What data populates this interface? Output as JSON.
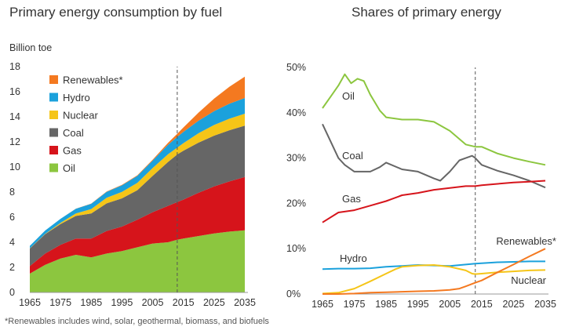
{
  "footnote": "*Renewables includes wind, solar, geothermal, biomass, and biofuels",
  "colors": {
    "oil": "#8cc63f",
    "gas": "#d6141b",
    "coal": "#666666",
    "nuclear": "#f5c518",
    "hydro": "#1ba1dc",
    "renewables": "#f47920"
  },
  "chart_data": [
    {
      "type": "area",
      "stacked": true,
      "title": "Primary energy consumption by fuel",
      "ylabel": "Billion toe",
      "xlabel": "",
      "xlim": [
        1965,
        2035
      ],
      "ylim": [
        0,
        18
      ],
      "x_ticks": [
        "1965",
        "1975",
        "1985",
        "1995",
        "2005",
        "2015",
        "2025",
        "2035"
      ],
      "y_ticks": [
        "0",
        "2",
        "4",
        "6",
        "8",
        "10",
        "12",
        "14",
        "16",
        "18"
      ],
      "projection_start": 2013,
      "legend_position": "top-left",
      "x": [
        1965,
        1970,
        1975,
        1980,
        1985,
        1990,
        1995,
        2000,
        2005,
        2010,
        2013,
        2015,
        2020,
        2025,
        2030,
        2035
      ],
      "series": [
        {
          "name": "Oil",
          "key": "oil",
          "values": [
            1.5,
            2.2,
            2.7,
            3.0,
            2.8,
            3.1,
            3.3,
            3.6,
            3.9,
            4.0,
            4.2,
            4.3,
            4.5,
            4.7,
            4.85,
            4.95
          ]
        },
        {
          "name": "Gas",
          "key": "gas",
          "values": [
            0.6,
            0.9,
            1.1,
            1.3,
            1.5,
            1.8,
            1.95,
            2.2,
            2.5,
            2.9,
            3.0,
            3.1,
            3.45,
            3.75,
            4.0,
            4.25
          ]
        },
        {
          "name": "Coal",
          "key": "coal",
          "values": [
            1.4,
            1.55,
            1.65,
            1.8,
            2.0,
            2.2,
            2.25,
            2.35,
            2.9,
            3.5,
            3.8,
            3.9,
            4.0,
            4.05,
            4.08,
            4.1
          ]
        },
        {
          "name": "Nuclear",
          "key": "nuclear",
          "values": [
            0.01,
            0.02,
            0.1,
            0.2,
            0.35,
            0.45,
            0.52,
            0.58,
            0.62,
            0.62,
            0.55,
            0.6,
            0.75,
            0.85,
            0.92,
            0.95
          ]
        },
        {
          "name": "Hydro",
          "key": "hydro",
          "values": [
            0.2,
            0.27,
            0.32,
            0.37,
            0.42,
            0.47,
            0.52,
            0.56,
            0.6,
            0.75,
            0.85,
            0.9,
            1.0,
            1.1,
            1.2,
            1.25
          ]
        },
        {
          "name": "Renewables*",
          "key": "renewables",
          "values": [
            0.0,
            0.0,
            0.0,
            0.01,
            0.02,
            0.03,
            0.04,
            0.05,
            0.07,
            0.15,
            0.25,
            0.35,
            0.65,
            1.0,
            1.35,
            1.7
          ]
        }
      ]
    },
    {
      "type": "line",
      "title": "Shares of primary energy",
      "xlabel": "",
      "ylabel": "",
      "xlim": [
        1965,
        2035
      ],
      "ylim": [
        0,
        50
      ],
      "x_ticks": [
        "1965",
        "1975",
        "1985",
        "1995",
        "2005",
        "2015",
        "2025",
        "2035"
      ],
      "y_ticks": [
        "0%",
        "10%",
        "20%",
        "30%",
        "40%",
        "50%"
      ],
      "projection_start": 2013,
      "series": [
        {
          "name": "Oil",
          "key": "oil",
          "x": [
            1965,
            1968,
            1970,
            1972,
            1974,
            1976,
            1978,
            1980,
            1983,
            1985,
            1990,
            1995,
            2000,
            2005,
            2010,
            2013,
            2015,
            2020,
            2025,
            2030,
            2035
          ],
          "values": [
            41,
            44,
            46,
            48.5,
            46.5,
            47.5,
            47,
            44,
            40.5,
            39,
            38.5,
            38.5,
            38,
            36,
            33,
            32.5,
            32.5,
            31,
            30,
            29.2,
            28.5
          ]
        },
        {
          "name": "Coal",
          "key": "coal",
          "x": [
            1965,
            1967,
            1970,
            1972,
            1975,
            1980,
            1983,
            1985,
            1990,
            1995,
            2000,
            2002,
            2005,
            2008,
            2010,
            2012,
            2013,
            2015,
            2020,
            2025,
            2030,
            2035
          ],
          "values": [
            37.5,
            34.5,
            30,
            28.5,
            27,
            27,
            28,
            29,
            27.5,
            27,
            25.5,
            25,
            27,
            29.5,
            30,
            30.5,
            30,
            28.5,
            27.2,
            26.2,
            25,
            23.5
          ]
        },
        {
          "name": "Gas",
          "key": "gas",
          "x": [
            1965,
            1970,
            1975,
            1980,
            1985,
            1990,
            1995,
            2000,
            2005,
            2010,
            2013,
            2015,
            2020,
            2025,
            2030,
            2035
          ],
          "values": [
            15.8,
            18,
            18.5,
            19.5,
            20.5,
            21.8,
            22.3,
            23,
            23.4,
            23.8,
            23.8,
            24,
            24.3,
            24.6,
            24.8,
            25
          ]
        },
        {
          "name": "Hydro",
          "key": "hydro",
          "x": [
            1965,
            1970,
            1975,
            1980,
            1985,
            1990,
            1995,
            2000,
            2005,
            2010,
            2013,
            2015,
            2020,
            2025,
            2030,
            2035
          ],
          "values": [
            5.5,
            5.6,
            5.6,
            5.7,
            6.0,
            6.2,
            6.4,
            6.3,
            6.2,
            6.5,
            6.7,
            6.8,
            7.0,
            7.1,
            7.2,
            7.2
          ]
        },
        {
          "name": "Nuclear",
          "key": "nuclear",
          "x": [
            1965,
            1970,
            1975,
            1980,
            1985,
            1988,
            1990,
            1995,
            2000,
            2005,
            2010,
            2012,
            2013,
            2015,
            2020,
            2025,
            2030,
            2035
          ],
          "values": [
            0.1,
            0.3,
            1.2,
            2.8,
            4.5,
            5.5,
            6.0,
            6.3,
            6.4,
            6.0,
            5.2,
            4.5,
            4.4,
            4.5,
            4.8,
            5.0,
            5.2,
            5.3
          ]
        },
        {
          "name": "Renewables*",
          "key": "renewables",
          "x": [
            1965,
            1970,
            1975,
            1980,
            1985,
            1990,
            1995,
            2000,
            2005,
            2008,
            2010,
            2013,
            2015,
            2020,
            2025,
            2030,
            2035
          ],
          "values": [
            0,
            0,
            0.1,
            0.3,
            0.4,
            0.5,
            0.6,
            0.7,
            0.9,
            1.2,
            1.7,
            2.5,
            3.0,
            4.8,
            6.5,
            8.3,
            10.0
          ]
        }
      ]
    }
  ]
}
